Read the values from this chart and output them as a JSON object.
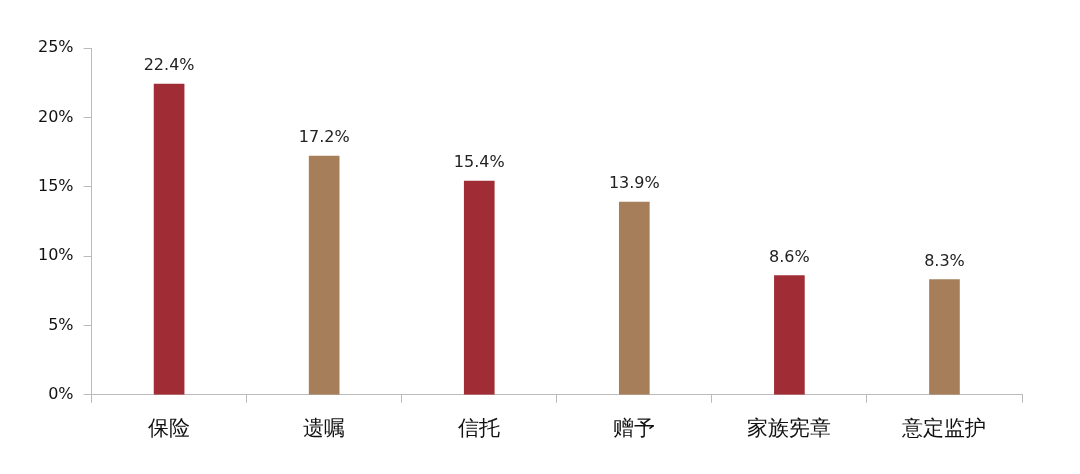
{
  "chart_data": {
    "type": "bar",
    "categories": [
      "保险",
      "遗嘱",
      "信托",
      "赠予",
      "家族宪章",
      "意定监护"
    ],
    "values": [
      22.4,
      17.2,
      15.4,
      13.9,
      8.6,
      8.3
    ],
    "colors": [
      "#a02c35",
      "#a67f5a",
      "#a02c35",
      "#a67f5a",
      "#a02c35",
      "#a67f5a"
    ],
    "value_labels": [
      "22.4%",
      "17.2%",
      "15.4%",
      "13.9%",
      "8.6%",
      "8.3%"
    ],
    "ylim": [
      0,
      25
    ],
    "yticks": [
      {
        "value": 0,
        "label": "0%"
      },
      {
        "value": 5,
        "label": "5%"
      },
      {
        "value": 10,
        "label": "10%"
      },
      {
        "value": 15,
        "label": "15%"
      },
      {
        "value": 20,
        "label": "20%"
      },
      {
        "value": 25,
        "label": "25%"
      }
    ],
    "legend": false
  }
}
